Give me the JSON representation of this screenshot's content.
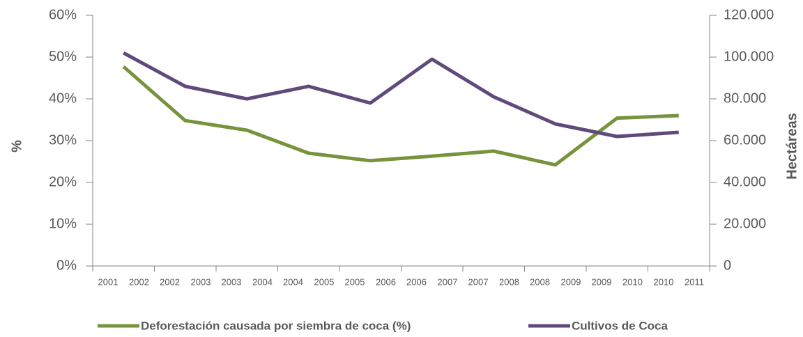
{
  "chart_data": {
    "type": "line",
    "categories": [
      "2001 2002",
      "2002 2003",
      "2003 2004",
      "2004 2005",
      "2005 2006",
      "2006 2007",
      "2007 2008",
      "2008 2009",
      "2009 2010",
      "2010 2011"
    ],
    "series": [
      {
        "name": "Deforestación causada por siembra de coca (%)",
        "color": "#77933c",
        "axis": "y",
        "values": [
          47.7,
          34.8,
          32.5,
          27,
          25.2,
          26.3,
          27.5,
          24.2,
          35.4,
          36
        ]
      },
      {
        "name": "Cultivos de Coca",
        "color": "#604a7b",
        "axis": "y2",
        "values": [
          102000,
          86000,
          80000,
          86000,
          78000,
          99000,
          81000,
          68000,
          62000,
          64000
        ]
      }
    ],
    "y_label": "%",
    "y2_label": "Hectáreas",
    "ylim": [
      0,
      60
    ],
    "yticks": [
      {
        "value": 0,
        "label": "0%"
      },
      {
        "value": 10,
        "label": "10%"
      },
      {
        "value": 20,
        "label": "20%"
      },
      {
        "value": 30,
        "label": "30%"
      },
      {
        "value": 40,
        "label": "40%"
      },
      {
        "value": 50,
        "label": "50%"
      },
      {
        "value": 60,
        "label": "60%"
      }
    ],
    "y2lim": [
      0,
      120000
    ],
    "y2ticks": [
      0,
      {
        "value": 20000,
        "label": "20.000"
      },
      {
        "value": 40000,
        "label": "40.000"
      },
      {
        "value": 60000,
        "label": "60.000"
      },
      {
        "value": 80000,
        "label": "80.000"
      },
      {
        "value": 100000,
        "label": "100.000"
      },
      {
        "value": 120000,
        "label": "120.000"
      }
    ],
    "grid": false,
    "legend": "bottom"
  }
}
